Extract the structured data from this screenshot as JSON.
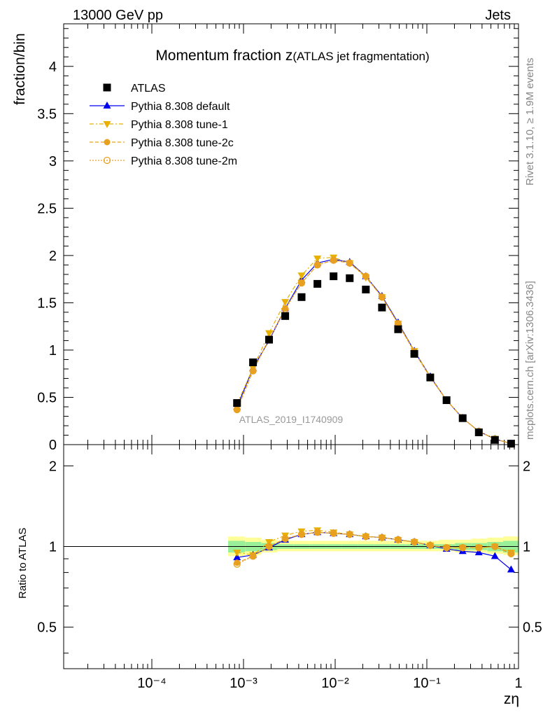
{
  "header": {
    "left": "13000 GeV pp",
    "right": "Jets"
  },
  "side_text": {
    "upper": "Rivet 3.1.10, ≥ 1.9M events",
    "lower": "mcplots.cern.ch [arXiv:1306.3436]"
  },
  "main_plot": {
    "title_main": "Momentum fraction z",
    "title_sub": "(ATLAS jet fragmentation)",
    "ylabel": "fraction/bin",
    "watermark": "ATLAS_2019_I1740909",
    "yticks": [
      "0",
      "0.5",
      "1",
      "1.5",
      "2",
      "2.5",
      "3",
      "3.5",
      "4"
    ]
  },
  "ratio_plot": {
    "ylabel": "Ratio to ATLAS",
    "yticks": [
      "0.5",
      "1",
      "2"
    ]
  },
  "xaxis": {
    "label": "zη",
    "ticks": [
      "10⁻⁴",
      "10⁻³",
      "10⁻²",
      "10⁻¹",
      "1"
    ]
  },
  "legend": [
    {
      "label": "ATLAS",
      "color": "#000000",
      "marker": "square",
      "line": "none"
    },
    {
      "label": "Pythia 8.308 default",
      "color": "#0000ee",
      "marker": "triangle-up",
      "line": "solid"
    },
    {
      "label": "Pythia 8.308 tune-1",
      "color": "#e8b000",
      "marker": "triangle-down",
      "line": "dashdot"
    },
    {
      "label": "Pythia 8.308 tune-2c",
      "color": "#e8a020",
      "marker": "circle",
      "line": "dashed"
    },
    {
      "label": "Pythia 8.308 tune-2m",
      "color": "#e8a020",
      "marker": "circle-open",
      "line": "dotted"
    }
  ],
  "chart_data": {
    "type": "scatter",
    "x_scale": "log",
    "xlim": [
      0.0001,
      1
    ],
    "ylim": [
      0,
      4.45
    ],
    "ratio_ylim": [
      0.35,
      2.4
    ],
    "x": [
      0.00085,
      0.00127,
      0.0019,
      0.00285,
      0.0043,
      0.0064,
      0.0096,
      0.0144,
      0.0216,
      0.0324,
      0.0486,
      0.073,
      0.109,
      0.164,
      0.246,
      0.369,
      0.553,
      0.83
    ],
    "series": [
      {
        "name": "ATLAS",
        "values": [
          0.44,
          0.87,
          1.11,
          1.36,
          1.56,
          1.7,
          1.78,
          1.76,
          1.64,
          1.45,
          1.22,
          0.96,
          0.71,
          0.47,
          0.28,
          0.13,
          0.05,
          0.01
        ]
      },
      {
        "name": "Pythia 8.308 default",
        "values": [
          0.4,
          0.81,
          1.1,
          1.44,
          1.74,
          1.92,
          1.96,
          1.93,
          1.78,
          1.57,
          1.29,
          0.99,
          0.72,
          0.47,
          0.28,
          0.14,
          0.06,
          0.01
        ]
      },
      {
        "name": "Pythia 8.308 tune-1",
        "values": [
          0.43,
          0.81,
          1.18,
          1.51,
          1.79,
          1.97,
          1.98,
          1.92,
          1.77,
          1.56,
          1.28,
          0.99,
          0.72,
          0.47,
          0.28,
          0.14,
          0.06,
          0.01
        ]
      },
      {
        "name": "Pythia 8.308 tune-2c",
        "values": [
          0.37,
          0.78,
          1.12,
          1.44,
          1.71,
          1.9,
          1.95,
          1.92,
          1.78,
          1.56,
          1.28,
          0.98,
          0.71,
          0.47,
          0.28,
          0.14,
          0.06,
          0.01
        ]
      },
      {
        "name": "Pythia 8.308 tune-2m",
        "values": [
          0.37,
          0.78,
          1.11,
          1.43,
          1.71,
          1.9,
          1.95,
          1.92,
          1.78,
          1.56,
          1.28,
          0.98,
          0.71,
          0.47,
          0.28,
          0.14,
          0.06,
          0.01
        ]
      }
    ],
    "ratio_series": [
      {
        "name": "Pythia 8.308 default",
        "values": [
          0.91,
          0.93,
          0.99,
          1.06,
          1.11,
          1.13,
          1.12,
          1.11,
          1.09,
          1.08,
          1.06,
          1.04,
          1.01,
          0.98,
          0.96,
          0.95,
          0.92,
          0.82
        ]
      },
      {
        "name": "Pythia 8.308 tune-1",
        "values": [
          0.95,
          0.93,
          1.04,
          1.1,
          1.14,
          1.15,
          1.13,
          1.11,
          1.09,
          1.08,
          1.06,
          1.04,
          1.01,
          0.99,
          0.99,
          0.99,
          1.0,
          0.95
        ]
      },
      {
        "name": "Pythia 8.308 tune-2c",
        "values": [
          0.87,
          0.92,
          1.0,
          1.07,
          1.11,
          1.13,
          1.12,
          1.11,
          1.09,
          1.08,
          1.06,
          1.04,
          1.01,
          0.99,
          0.99,
          0.99,
          1.0,
          0.94
        ]
      },
      {
        "name": "Pythia 8.308 tune-2m",
        "values": [
          0.86,
          0.92,
          1.0,
          1.07,
          1.11,
          1.13,
          1.12,
          1.11,
          1.09,
          1.08,
          1.06,
          1.04,
          1.01,
          0.99,
          0.99,
          0.99,
          1.0,
          0.94
        ]
      }
    ],
    "ratio_bands": {
      "x_edges": [
        0.00068,
        0.00104,
        0.00156,
        0.00234,
        0.0035,
        0.0053,
        0.0079,
        0.0119,
        0.0178,
        0.0267,
        0.04,
        0.06,
        0.09,
        0.135,
        0.203,
        0.304,
        0.456,
        0.68,
        1.0
      ],
      "stat_lo": [
        0.95,
        0.96,
        0.97,
        0.98,
        0.98,
        0.98,
        0.98,
        0.98,
        0.98,
        0.98,
        0.98,
        0.98,
        0.98,
        0.98,
        0.97,
        0.97,
        0.96,
        0.95
      ],
      "stat_hi": [
        1.05,
        1.04,
        1.03,
        1.02,
        1.02,
        1.02,
        1.02,
        1.02,
        1.02,
        1.02,
        1.02,
        1.02,
        1.02,
        1.02,
        1.03,
        1.03,
        1.04,
        1.05
      ],
      "total_lo": [
        0.92,
        0.93,
        0.95,
        0.96,
        0.96,
        0.96,
        0.96,
        0.96,
        0.96,
        0.96,
        0.96,
        0.96,
        0.96,
        0.96,
        0.95,
        0.95,
        0.94,
        0.93
      ],
      "total_hi": [
        1.09,
        1.08,
        1.06,
        1.05,
        1.05,
        1.05,
        1.05,
        1.05,
        1.05,
        1.05,
        1.05,
        1.05,
        1.05,
        1.06,
        1.06,
        1.07,
        1.08,
        1.09
      ]
    }
  }
}
